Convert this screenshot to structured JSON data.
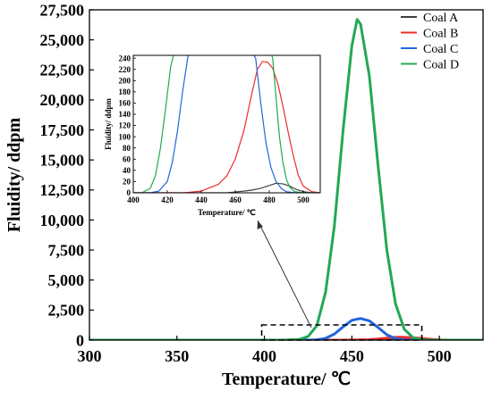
{
  "chart_data": [
    {
      "type": "line",
      "id": "main",
      "xlabel": "Temperature/ ℃",
      "ylabel": "Fluidity/ ddpm",
      "xlim": [
        300,
        525
      ],
      "ylim": [
        0,
        27500
      ],
      "xticks": [
        300,
        350,
        400,
        450,
        500
      ],
      "xtick_labels": [
        "300",
        "350",
        "400",
        "450",
        "500"
      ],
      "yticks": [
        0,
        2500,
        5000,
        7500,
        10000,
        12500,
        15000,
        17500,
        20000,
        22500,
        25000,
        27500
      ],
      "ytick_labels": [
        "0",
        "2,500",
        "5,000",
        "7,500",
        "10,000",
        "12,500",
        "15,000",
        "17,500",
        "20,000",
        "22,500",
        "25,000",
        "27,500"
      ],
      "grid": false,
      "legend_position": "top-right",
      "series": [
        {
          "name": "Coal A",
          "color": "#404040",
          "x": [
            300,
            460,
            470,
            480,
            485,
            490,
            495,
            500,
            525
          ],
          "y": [
            0,
            1,
            5,
            14,
            18,
            14,
            6,
            1,
            0
          ]
        },
        {
          "name": "Coal B",
          "color": "#ee2b2b",
          "x": [
            300,
            440,
            450,
            460,
            465,
            470,
            475,
            480,
            485,
            490,
            495,
            500,
            505,
            525
          ],
          "y": [
            0,
            1,
            5,
            40,
            90,
            170,
            230,
            232,
            200,
            140,
            65,
            18,
            2,
            0
          ]
        },
        {
          "name": "Coal C",
          "color": "#2266dd",
          "x": [
            300,
            425,
            430,
            435,
            440,
            445,
            450,
            455,
            460,
            465,
            470,
            475,
            480,
            525
          ],
          "y": [
            0,
            0,
            30,
            150,
            500,
            1100,
            1650,
            1800,
            1600,
            1050,
            450,
            120,
            0,
            0
          ]
        },
        {
          "name": "Coal D",
          "color": "#22a855",
          "x": [
            300,
            400,
            410,
            420,
            425,
            430,
            435,
            440,
            445,
            450,
            453,
            455,
            460,
            465,
            470,
            475,
            480,
            485,
            490,
            495,
            525
          ],
          "y": [
            0,
            0,
            3,
            60,
            300,
            1200,
            4000,
            9500,
            17500,
            24500,
            26700,
            26300,
            22000,
            14500,
            7500,
            3000,
            900,
            200,
            30,
            0,
            0
          ]
        }
      ]
    },
    {
      "type": "line",
      "id": "inset",
      "xlabel": "Temperature/ ℃",
      "ylabel": "Fluidity/ ddpm",
      "xlim": [
        400,
        510
      ],
      "ylim": [
        0,
        245
      ],
      "xticks": [
        400,
        420,
        440,
        460,
        480,
        500
      ],
      "xtick_labels": [
        "400",
        "420",
        "440",
        "460",
        "480",
        "500"
      ],
      "yticks": [
        0,
        20,
        40,
        60,
        80,
        100,
        120,
        140,
        160,
        180,
        200,
        220,
        240
      ],
      "ytick_labels": [
        "0",
        "20",
        "40",
        "60",
        "80",
        "100",
        "120",
        "140",
        "160",
        "180",
        "200",
        "220",
        "240"
      ],
      "grid": false,
      "series": [
        {
          "name": "Coal A",
          "color": "#404040",
          "x": [
            400,
            455,
            465,
            470,
            475,
            480,
            484,
            488,
            492,
            496,
            500,
            505,
            510
          ],
          "y": [
            0,
            0,
            3,
            5,
            8,
            13,
            17,
            16,
            12,
            6,
            2,
            0,
            0
          ]
        },
        {
          "name": "Coal B",
          "color": "#ee2b2b",
          "x": [
            400,
            430,
            440,
            450,
            455,
            460,
            465,
            470,
            473,
            476,
            479,
            482,
            485,
            488,
            491,
            494,
            497,
            500,
            505,
            510
          ],
          "y": [
            0,
            0,
            3,
            15,
            30,
            60,
            110,
            180,
            220,
            234,
            233,
            222,
            195,
            155,
            110,
            68,
            32,
            12,
            2,
            0
          ]
        },
        {
          "name": "Coal C",
          "color": "#2266dd",
          "x": [
            400,
            410,
            415,
            420,
            423,
            426,
            429,
            432,
            433,
            470,
            472,
            475,
            478,
            481,
            484,
            487,
            490,
            495,
            510
          ],
          "y": [
            0,
            0,
            3,
            20,
            55,
            110,
            180,
            240,
            250,
            250,
            240,
            160,
            90,
            45,
            20,
            8,
            2,
            0,
            0
          ]
        },
        {
          "name": "Coal D",
          "color": "#22a855",
          "x": [
            400,
            405,
            410,
            413,
            416,
            419,
            422,
            424,
            425,
            481,
            482,
            484,
            486,
            488,
            490,
            492,
            495,
            500,
            510
          ],
          "y": [
            0,
            0,
            8,
            30,
            80,
            150,
            225,
            250,
            250,
            250,
            240,
            170,
            100,
            55,
            25,
            10,
            2,
            0,
            0
          ]
        }
      ]
    }
  ]
}
